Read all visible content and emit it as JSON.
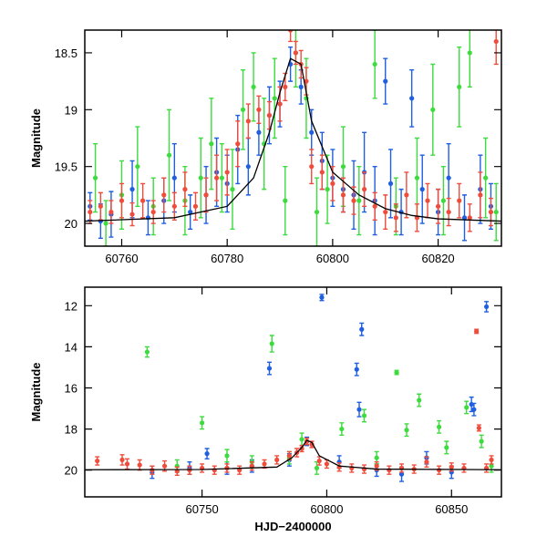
{
  "chart_data": [
    {
      "type": "scatter",
      "panel": "top",
      "xlabel": "",
      "ylabel": "Magnitude",
      "xlim": [
        60753,
        60832
      ],
      "ylim": [
        20.2,
        18.3
      ],
      "y_inverted": true,
      "x_ticks": [
        60760,
        60780,
        60800,
        60820
      ],
      "x_tick_labels": [
        "60760",
        "60780",
        "60800",
        "60820"
      ],
      "y_ticks": [
        18.5,
        19,
        19.5,
        20
      ],
      "y_tick_labels": [
        "18.5",
        "19",
        "19.5",
        "20"
      ],
      "grid": false,
      "legend": "none",
      "model_curve": {
        "color": "#000000",
        "x": [
          60753,
          60770,
          60780,
          60785,
          60788,
          60790,
          60792,
          60794,
          60796,
          60800,
          60805,
          60810,
          60815,
          60820,
          60832
        ],
        "y": [
          19.98,
          19.95,
          19.85,
          19.6,
          19.2,
          18.85,
          18.55,
          18.6,
          19.1,
          19.55,
          19.75,
          19.87,
          19.93,
          19.96,
          19.98
        ]
      },
      "series": [
        {
          "color": "#1f5fe0",
          "points": [
            [
              60754,
              19.85,
              0.12
            ],
            [
              60756,
              19.98,
              0.15
            ],
            [
              60758,
              19.92,
              0.2
            ],
            [
              60762,
              19.7,
              0.25
            ],
            [
              60765,
              19.95,
              0.15
            ],
            [
              60768,
              19.8,
              0.2
            ],
            [
              60770,
              19.6,
              0.3
            ],
            [
              60773,
              19.9,
              0.15
            ],
            [
              60776,
              19.75,
              0.25
            ],
            [
              60778,
              19.55,
              0.3
            ],
            [
              60780,
              19.65,
              0.25
            ],
            [
              60782,
              19.35,
              0.3
            ],
            [
              60784,
              19.5,
              0.25
            ],
            [
              60786,
              19.2,
              0.2
            ],
            [
              60788,
              19.05,
              0.25
            ],
            [
              60790,
              18.95,
              0.2
            ],
            [
              60792,
              18.6,
              0.15
            ],
            [
              60794,
              18.8,
              0.15
            ],
            [
              60796,
              19.2,
              0.2
            ],
            [
              60798,
              19.45,
              0.25
            ],
            [
              60800,
              19.6,
              0.25
            ],
            [
              60802,
              19.7,
              0.2
            ],
            [
              60804,
              19.75,
              0.3
            ],
            [
              60806,
              19.55,
              0.35
            ],
            [
              60808,
              19.8,
              0.3
            ],
            [
              60810,
              18.75,
              0.2
            ],
            [
              60811,
              19.65,
              0.3
            ],
            [
              60813,
              19.9,
              0.2
            ],
            [
              60815,
              18.9,
              0.25
            ],
            [
              60817,
              19.7,
              0.3
            ],
            [
              60820,
              19.9,
              0.2
            ],
            [
              60822,
              19.6,
              0.3
            ],
            [
              60825,
              19.95,
              0.2
            ],
            [
              60828,
              19.7,
              0.3
            ],
            [
              60830,
              19.85,
              0.2
            ]
          ]
        },
        {
          "color": "#3ddb3d",
          "points": [
            [
              60755,
              19.6,
              0.3
            ],
            [
              60757,
              20.0,
              0.2
            ],
            [
              60760,
              19.75,
              0.3
            ],
            [
              60763,
              19.5,
              0.35
            ],
            [
              60766,
              19.85,
              0.25
            ],
            [
              60769,
              19.4,
              0.4
            ],
            [
              60772,
              19.8,
              0.3
            ],
            [
              60775,
              19.6,
              0.35
            ],
            [
              60777,
              19.3,
              0.4
            ],
            [
              60779,
              19.6,
              0.3
            ],
            [
              60781,
              19.7,
              0.35
            ],
            [
              60783,
              19.0,
              0.35
            ],
            [
              60785,
              18.8,
              0.3
            ],
            [
              60787,
              19.3,
              0.4
            ],
            [
              60789,
              18.9,
              0.35
            ],
            [
              60791,
              19.8,
              0.3
            ],
            [
              60793,
              18.5,
              0.3
            ],
            [
              60795,
              18.9,
              0.35
            ],
            [
              60797,
              19.9,
              0.3
            ],
            [
              60799,
              19.7,
              0.3
            ],
            [
              60802,
              19.5,
              0.35
            ],
            [
              60805,
              19.8,
              0.3
            ],
            [
              60808,
              18.6,
              0.3
            ],
            [
              60812,
              19.85,
              0.25
            ],
            [
              60816,
              19.6,
              0.35
            ],
            [
              60819,
              19.0,
              0.4
            ],
            [
              60821,
              19.8,
              0.3
            ],
            [
              60824,
              18.8,
              0.35
            ],
            [
              60826,
              18.5,
              0.3
            ],
            [
              60829,
              19.6,
              0.35
            ],
            [
              60831,
              19.9,
              0.25
            ]
          ]
        },
        {
          "color": "#f04c3c",
          "points": [
            [
              60754,
              19.9,
              0.1
            ],
            [
              60756,
              19.85,
              0.12
            ],
            [
              60758,
              19.9,
              0.1
            ],
            [
              60760,
              19.8,
              0.15
            ],
            [
              60762,
              19.92,
              0.1
            ],
            [
              60764,
              19.8,
              0.15
            ],
            [
              60766,
              19.9,
              0.1
            ],
            [
              60768,
              19.75,
              0.15
            ],
            [
              60770,
              19.85,
              0.12
            ],
            [
              60772,
              19.7,
              0.15
            ],
            [
              60774,
              19.85,
              0.12
            ],
            [
              60776,
              19.75,
              0.15
            ],
            [
              60778,
              19.6,
              0.2
            ],
            [
              60780,
              19.55,
              0.2
            ],
            [
              60782,
              19.3,
              0.2
            ],
            [
              60784,
              19.1,
              0.15
            ],
            [
              60786,
              19.0,
              0.12
            ],
            [
              60788,
              19.05,
              0.12
            ],
            [
              60790,
              18.95,
              0.15
            ],
            [
              60791,
              18.8,
              0.12
            ],
            [
              60792,
              18.3,
              0.1
            ],
            [
              60793,
              18.5,
              0.1
            ],
            [
              60794,
              18.6,
              0.12
            ],
            [
              60795,
              18.75,
              0.12
            ],
            [
              60796,
              19.5,
              0.15
            ],
            [
              60798,
              19.55,
              0.15
            ],
            [
              60800,
              19.65,
              0.15
            ],
            [
              60802,
              19.75,
              0.15
            ],
            [
              60804,
              19.8,
              0.12
            ],
            [
              60806,
              19.7,
              0.15
            ],
            [
              60808,
              19.85,
              0.12
            ],
            [
              60810,
              19.9,
              0.15
            ],
            [
              60812,
              19.95,
              0.12
            ],
            [
              60814,
              19.75,
              0.2
            ],
            [
              60816,
              19.95,
              0.12
            ],
            [
              60818,
              19.8,
              0.15
            ],
            [
              60820,
              19.85,
              0.15
            ],
            [
              60822,
              19.9,
              0.12
            ],
            [
              60824,
              19.8,
              0.15
            ],
            [
              60826,
              19.95,
              0.12
            ],
            [
              60828,
              19.75,
              0.2
            ],
            [
              60830,
              19.9,
              0.12
            ],
            [
              60831,
              18.4,
              0.2
            ]
          ]
        }
      ]
    },
    {
      "type": "scatter",
      "panel": "bottom",
      "xlabel": "HJD−2400000",
      "ylabel": "Magnitude",
      "xlim": [
        60703,
        60870
      ],
      "ylim": [
        21.3,
        11.1
      ],
      "y_inverted": true,
      "x_ticks": [
        60750,
        60800,
        60850
      ],
      "x_tick_labels": [
        "60750",
        "60800",
        "60850"
      ],
      "y_ticks": [
        12,
        14,
        16,
        18,
        20
      ],
      "y_tick_labels": [
        "12",
        "14",
        "16",
        "18",
        "20"
      ],
      "grid": false,
      "legend": "none",
      "model_curve": {
        "color": "#000000",
        "x": [
          60703,
          60750,
          60780,
          60786,
          60790,
          60792,
          60794,
          60797,
          60805,
          60820,
          60870
        ],
        "y": [
          19.98,
          19.97,
          19.85,
          19.4,
          18.9,
          18.55,
          18.65,
          19.3,
          19.8,
          19.95,
          19.98
        ]
      },
      "series": [
        {
          "color": "#1f5fe0",
          "points": [
            [
              60730,
              20.1,
              0.3
            ],
            [
              60745,
              19.9,
              0.3
            ],
            [
              60752,
              19.2,
              0.25
            ],
            [
              60760,
              19.9,
              0.3
            ],
            [
              60770,
              19.8,
              0.3
            ],
            [
              60777,
              15.05,
              0.3
            ],
            [
              60785,
              19.5,
              0.3
            ],
            [
              60792,
              18.6,
              0.2
            ],
            [
              60798,
              11.6,
              0.15
            ],
            [
              60805,
              19.6,
              0.3
            ],
            [
              60812,
              15.1,
              0.3
            ],
            [
              60813,
              17.05,
              0.35
            ],
            [
              60814,
              13.15,
              0.3
            ],
            [
              60820,
              20.0,
              0.3
            ],
            [
              60830,
              20.2,
              0.35
            ],
            [
              60840,
              19.4,
              0.3
            ],
            [
              60850,
              20.1,
              0.3
            ],
            [
              60858,
              16.8,
              0.35
            ],
            [
              60859,
              17.05,
              0.3
            ],
            [
              60864,
              12.05,
              0.25
            ]
          ]
        },
        {
          "color": "#3ddb3d",
          "points": [
            [
              60728,
              14.25,
              0.25
            ],
            [
              60740,
              19.8,
              0.3
            ],
            [
              60750,
              17.7,
              0.3
            ],
            [
              60760,
              19.3,
              0.3
            ],
            [
              60770,
              19.6,
              0.3
            ],
            [
              60778,
              13.85,
              0.4
            ],
            [
              60785,
              19.4,
              0.3
            ],
            [
              60790,
              18.5,
              0.3
            ],
            [
              60796,
              19.9,
              0.3
            ],
            [
              60806,
              18.0,
              0.3
            ],
            [
              60815,
              17.35,
              0.3
            ],
            [
              60820,
              19.4,
              0.3
            ],
            [
              60828,
              15.25,
              0.1
            ],
            [
              60832,
              18.05,
              0.3
            ],
            [
              60837,
              16.6,
              0.3
            ],
            [
              60845,
              17.9,
              0.3
            ],
            [
              60848,
              18.9,
              0.3
            ],
            [
              60856,
              16.95,
              0.3
            ],
            [
              60862,
              18.6,
              0.3
            ],
            [
              60866,
              19.8,
              0.3
            ]
          ]
        },
        {
          "color": "#f04c3c",
          "points": [
            [
              60708,
              19.55,
              0.2
            ],
            [
              60718,
              19.5,
              0.25
            ],
            [
              60720,
              19.7,
              0.25
            ],
            [
              60725,
              19.75,
              0.25
            ],
            [
              60730,
              20.0,
              0.2
            ],
            [
              60735,
              19.8,
              0.25
            ],
            [
              60740,
              20.05,
              0.2
            ],
            [
              60745,
              20.0,
              0.2
            ],
            [
              60750,
              19.9,
              0.2
            ],
            [
              60755,
              20.0,
              0.2
            ],
            [
              60760,
              19.9,
              0.2
            ],
            [
              60765,
              20.0,
              0.2
            ],
            [
              60770,
              19.8,
              0.2
            ],
            [
              60775,
              19.7,
              0.2
            ],
            [
              60780,
              19.5,
              0.2
            ],
            [
              60785,
              19.3,
              0.2
            ],
            [
              60788,
              19.15,
              0.2
            ],
            [
              60790,
              18.95,
              0.15
            ],
            [
              60792,
              18.6,
              0.15
            ],
            [
              60794,
              18.75,
              0.15
            ],
            [
              60797,
              19.55,
              0.2
            ],
            [
              60800,
              19.7,
              0.2
            ],
            [
              60805,
              19.85,
              0.2
            ],
            [
              60810,
              19.9,
              0.2
            ],
            [
              60815,
              19.95,
              0.2
            ],
            [
              60820,
              19.8,
              0.2
            ],
            [
              60825,
              20.0,
              0.2
            ],
            [
              60830,
              19.9,
              0.2
            ],
            [
              60835,
              19.95,
              0.2
            ],
            [
              60840,
              19.6,
              0.25
            ],
            [
              60845,
              20.0,
              0.2
            ],
            [
              60850,
              19.85,
              0.2
            ],
            [
              60855,
              19.9,
              0.2
            ],
            [
              60860,
              13.25,
              0.1
            ],
            [
              60861,
              17.95,
              0.15
            ],
            [
              60864,
              19.9,
              0.2
            ],
            [
              60866,
              19.5,
              0.2
            ]
          ]
        }
      ]
    }
  ]
}
